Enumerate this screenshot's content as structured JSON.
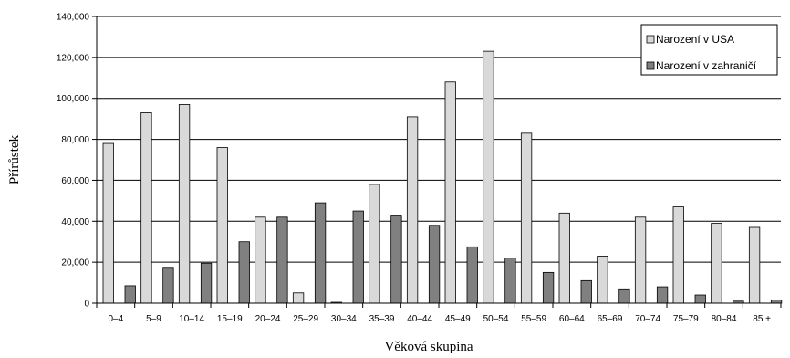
{
  "chart_data": {
    "type": "bar",
    "title": "",
    "xlabel": "Věková skupina",
    "ylabel": "Přírůstek",
    "ylim": [
      0,
      140000
    ],
    "yticks": [
      0,
      20000,
      40000,
      60000,
      80000,
      100000,
      120000,
      140000
    ],
    "ytick_labels": [
      "0",
      "20,000",
      "40,000",
      "60,000",
      "80,000",
      "100,000",
      "120,000",
      "140,000"
    ],
    "grid": true,
    "legend_position": "top-right",
    "categories": [
      "0–4",
      "5–9",
      "10–14",
      "15–19",
      "20–24",
      "25–29",
      "30–34",
      "35–39",
      "40–44",
      "45–49",
      "50–54",
      "55–59",
      "60–64",
      "65–69",
      "70–74",
      "75–79",
      "80–84",
      "85 +"
    ],
    "series": [
      {
        "name": "Narození v USA",
        "color": "#d9d9d9",
        "values": [
          78000,
          93000,
          97000,
          76000,
          42000,
          5000,
          0,
          58000,
          91000,
          108000,
          123000,
          83000,
          44000,
          23000,
          42000,
          47000,
          39000,
          37000
        ]
      },
      {
        "name": "Narození v zahraničí",
        "color": "#808080",
        "values": [
          8500,
          17500,
          19500,
          30000,
          42000,
          49000,
          45000,
          43000,
          38000,
          27500,
          22000,
          15000,
          11000,
          7000,
          8000,
          4000,
          1000,
          1500
        ]
      }
    ]
  }
}
